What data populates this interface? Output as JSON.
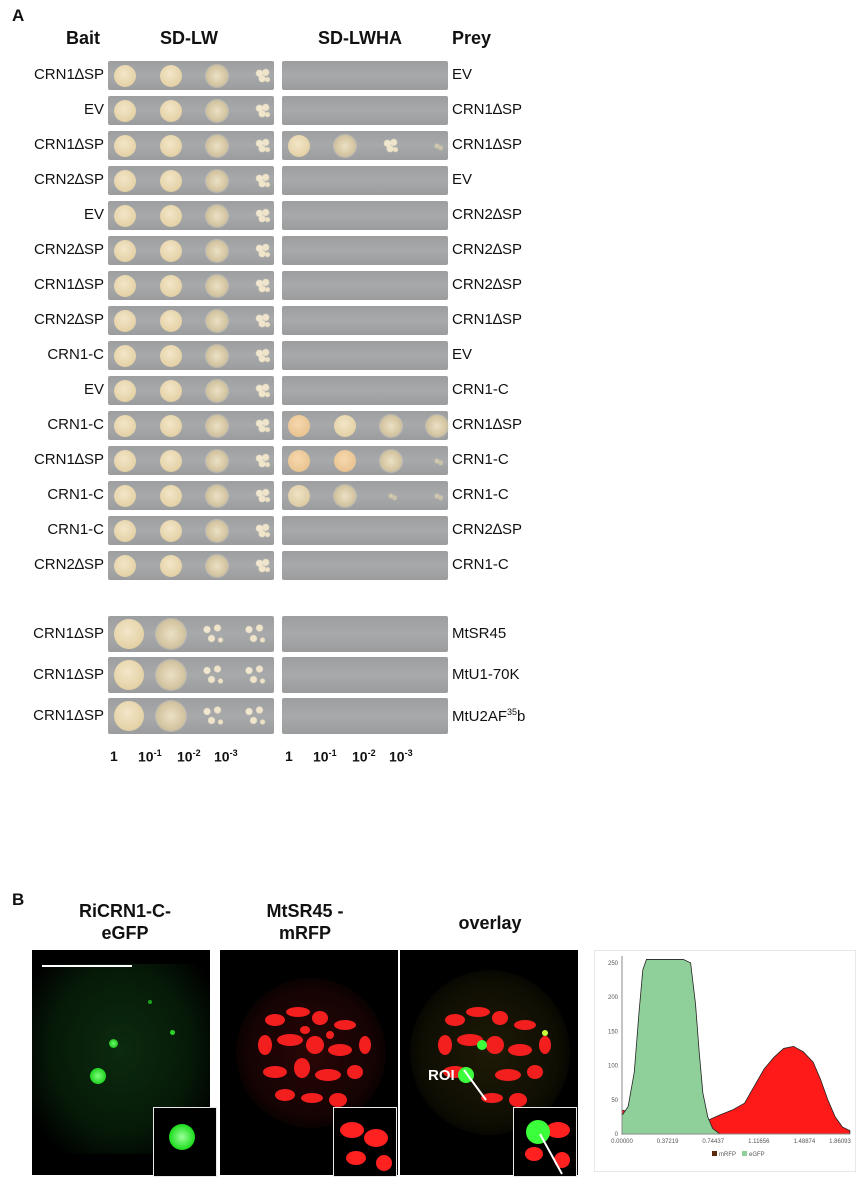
{
  "panel_a": {
    "letter": "A",
    "headers": {
      "bait": "Bait",
      "sd_lw": "SD-LW",
      "sd_lwha": "SD-LWHA",
      "prey": "Prey"
    },
    "rows": [
      {
        "bait": "CRN1∆SP",
        "prey": "EV"
      },
      {
        "bait": "EV",
        "prey": "CRN1∆SP"
      },
      {
        "bait": "CRN1∆SP",
        "prey": "CRN1∆SP"
      },
      {
        "bait": "CRN2∆SP",
        "prey": "EV"
      },
      {
        "bait": "EV",
        "prey": "CRN2∆SP"
      },
      {
        "bait": "CRN2∆SP",
        "prey": "CRN2∆SP"
      },
      {
        "bait": "CRN1∆SP",
        "prey": "CRN2∆SP"
      },
      {
        "bait": "CRN2∆SP",
        "prey": "CRN1∆SP"
      },
      {
        "bait": "CRN1-C",
        "prey": "EV"
      },
      {
        "bait": "EV",
        "prey": "CRN1-C"
      },
      {
        "bait": "CRN1-C",
        "prey": "CRN1∆SP"
      },
      {
        "bait": "CRN1∆SP",
        "prey": "CRN1-C"
      },
      {
        "bait": "CRN1-C",
        "prey": "CRN1-C"
      },
      {
        "bait": "CRN1-C",
        "prey": "CRN2∆SP"
      },
      {
        "bait": "CRN2∆SP",
        "prey": "CRN1-C"
      }
    ],
    "rows2": [
      {
        "bait": "CRN1ΔSP",
        "prey": "MtSR45"
      },
      {
        "bait": "CRN1ΔSP",
        "prey": "MtU1-70K"
      },
      {
        "bait": "CRN1ΔSP",
        "prey_main": "MtU2AF",
        "prey_sup": "35",
        "prey_tail": "b"
      }
    ],
    "dilutions": [
      "1",
      "10",
      "-1",
      "10",
      "-2",
      "10",
      "-3"
    ]
  },
  "panel_b": {
    "letter": "B",
    "titles": [
      "RiCRN1-C-eGFP",
      "MtSR45 -mRFP",
      "overlay"
    ],
    "roi_label": "ROI",
    "chart_data": {
      "type": "area",
      "title": "",
      "x_ticks": [
        "0.00000",
        "0.37219",
        "0.74437",
        "1.11656",
        "1.48874",
        "1.86093"
      ],
      "y_ticks": [
        "0",
        "50",
        "100",
        "150",
        "200",
        "250"
      ],
      "ylim": [
        0,
        260
      ],
      "xlim": [
        0,
        1.86093
      ],
      "legend": "bottom-center",
      "series": [
        {
          "name": "eGFP",
          "color": "#8fd09a",
          "x": [
            0.0,
            0.05,
            0.1,
            0.14,
            0.17,
            0.2,
            0.24,
            0.3,
            0.4,
            0.5,
            0.56,
            0.6,
            0.63,
            0.66,
            0.7,
            0.74,
            0.8
          ],
          "y": [
            27,
            40,
            90,
            180,
            240,
            255,
            255,
            255,
            255,
            255,
            250,
            190,
            120,
            60,
            25,
            8,
            0
          ]
        },
        {
          "name": "mRFP",
          "color": "#ff1a1a",
          "x": [
            0.0,
            0.1,
            0.2,
            0.3,
            0.4,
            0.5,
            0.6,
            0.7,
            0.8,
            0.9,
            1.0,
            1.08,
            1.16,
            1.24,
            1.32,
            1.4,
            1.48,
            1.56,
            1.62,
            1.68,
            1.74,
            1.8,
            1.86
          ],
          "y": [
            35,
            30,
            30,
            35,
            33,
            30,
            25,
            20,
            28,
            35,
            45,
            70,
            95,
            112,
            125,
            128,
            120,
            105,
            80,
            50,
            25,
            10,
            5
          ]
        }
      ]
    }
  }
}
